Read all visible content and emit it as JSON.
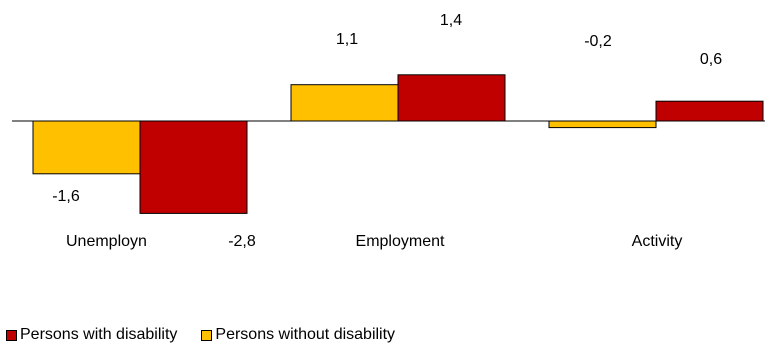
{
  "chart_data": {
    "type": "bar",
    "categories": [
      "Unemployn",
      "Employment",
      "Activity"
    ],
    "series": [
      {
        "name": "Persons without disability",
        "color": "#FFC000",
        "values": [
          -1.6,
          1.1,
          -0.2
        ],
        "labels": [
          "-1,6",
          "1,1",
          "-0,2"
        ]
      },
      {
        "name": "Persons with disability",
        "color": "#C00000",
        "values": [
          -2.8,
          1.4,
          0.6
        ],
        "labels": [
          "-2,8",
          "1,4",
          "0,6"
        ]
      }
    ],
    "legend_order": [
      1,
      0
    ],
    "legend_placement": "bottom-left",
    "grid": false,
    "ylim": [
      -3.0,
      1.6
    ],
    "title": "",
    "xlabel": "",
    "ylabel": ""
  }
}
